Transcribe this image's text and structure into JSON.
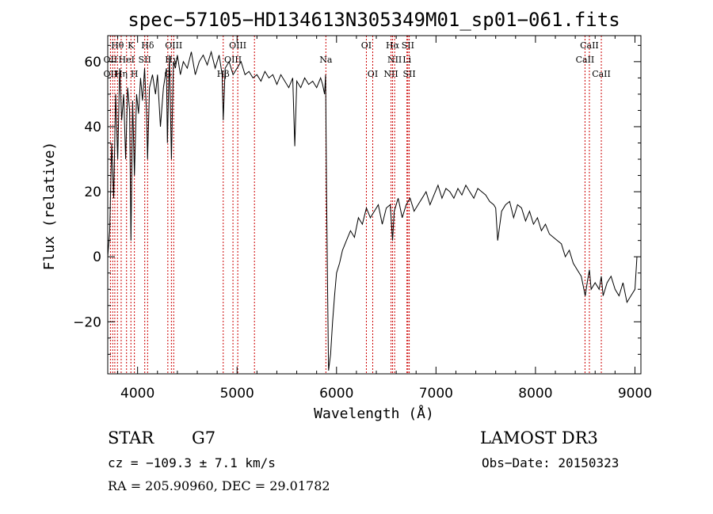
{
  "chart_data": {
    "type": "line",
    "title": "spec−57105−HD134613N305349M01_sp01−061.fits",
    "xlabel": "Wavelength (Å)",
    "ylabel": "Flux (relative)",
    "xlim": [
      3700,
      9060
    ],
    "ylim": [
      -36,
      68
    ],
    "x_ticks": [
      4000,
      5000,
      6000,
      7000,
      8000,
      9000
    ],
    "y_ticks": [
      -20,
      0,
      20,
      40,
      60
    ],
    "y_tick_labels": [
      "−20",
      "0",
      "20",
      "40",
      "60"
    ],
    "series": [
      {
        "color": "#000000",
        "x": [
          3700,
          3720,
          3740,
          3760,
          3780,
          3800,
          3820,
          3840,
          3860,
          3880,
          3900,
          3920,
          3933,
          3950,
          3968,
          3990,
          4010,
          4030,
          4050,
          4070,
          4090,
          4101,
          4120,
          4150,
          4180,
          4200,
          4230,
          4260,
          4290,
          4300,
          4320,
          4340,
          4360,
          4380,
          4400,
          4430,
          4460,
          4500,
          4540,
          4580,
          4620,
          4660,
          4700,
          4740,
          4780,
          4820,
          4850,
          4861,
          4880,
          4920,
          4960,
          5000,
          5040,
          5080,
          5120,
          5160,
          5200,
          5240,
          5280,
          5320,
          5360,
          5400,
          5440,
          5480,
          5520,
          5560,
          5580,
          5600,
          5640,
          5680,
          5720,
          5760,
          5800,
          5840,
          5860,
          5880,
          5890,
          5900,
          5910,
          5920,
          5940,
          5960,
          5980,
          6000,
          6030,
          6060,
          6100,
          6140,
          6180,
          6220,
          6260,
          6300,
          6340,
          6380,
          6420,
          6460,
          6500,
          6540,
          6563,
          6580,
          6620,
          6660,
          6700,
          6740,
          6780,
          6820,
          6860,
          6900,
          6940,
          6980,
          7020,
          7060,
          7100,
          7140,
          7180,
          7220,
          7260,
          7300,
          7340,
          7380,
          7420,
          7460,
          7500,
          7540,
          7580,
          7600,
          7620,
          7660,
          7700,
          7740,
          7780,
          7820,
          7860,
          7900,
          7940,
          7980,
          8020,
          8060,
          8100,
          8140,
          8180,
          8220,
          8260,
          8300,
          8340,
          8380,
          8420,
          8460,
          8500,
          8520,
          8542,
          8560,
          8600,
          8640,
          8662,
          8680,
          8720,
          8760,
          8800,
          8840,
          8880,
          8920,
          8960,
          9000,
          9020
        ],
        "y": [
          0,
          8,
          35,
          18,
          50,
          30,
          58,
          42,
          50,
          30,
          52,
          45,
          5,
          48,
          25,
          50,
          44,
          55,
          48,
          58,
          44,
          30,
          52,
          56,
          50,
          56,
          40,
          52,
          58,
          35,
          62,
          30,
          60,
          58,
          62,
          56,
          60,
          58,
          63,
          56,
          60,
          62,
          59,
          63,
          58,
          62,
          56,
          42,
          58,
          60,
          56,
          58,
          60,
          56,
          57,
          55,
          56,
          54,
          57,
          55,
          56,
          53,
          56,
          54,
          52,
          55,
          34,
          54,
          52,
          55,
          53,
          54,
          52,
          55,
          53,
          50,
          56,
          20,
          -10,
          -35,
          -30,
          -20,
          -12,
          -5,
          -2,
          2,
          5,
          8,
          6,
          12,
          10,
          15,
          12,
          14,
          16,
          10,
          15,
          16,
          5,
          14,
          18,
          12,
          16,
          18,
          14,
          16,
          18,
          20,
          16,
          19,
          22,
          18,
          21,
          20,
          18,
          21,
          19,
          22,
          20,
          18,
          21,
          20,
          19,
          17,
          16,
          15,
          5,
          14,
          16,
          17,
          12,
          16,
          15,
          11,
          14,
          10,
          12,
          8,
          10,
          7,
          6,
          5,
          4,
          0,
          2,
          -2,
          -4,
          -6,
          -12,
          -8,
          -4,
          -10,
          -8,
          -10,
          -6,
          -12,
          -8,
          -6,
          -10,
          -12,
          -8,
          -14,
          -12,
          -10,
          0
        ]
      }
    ],
    "spectral_lines": [
      {
        "label": "Hθ",
        "wavelength": 3798,
        "row": 0
      },
      {
        "label": "K",
        "wavelength": 3933,
        "row": 0
      },
      {
        "label": "Hδ",
        "wavelength": 4101,
        "row": 0
      },
      {
        "label": "OIII",
        "wavelength": 4363,
        "row": 0
      },
      {
        "label": "OIII",
        "wavelength": 5007,
        "row": 0
      },
      {
        "label": "Na",
        "wavelength": 5893,
        "row": 1
      },
      {
        "label": "OI",
        "wavelength": 6300,
        "row": 0
      },
      {
        "label": "Hα",
        "wavelength": 6563,
        "row": 0
      },
      {
        "label": "SII",
        "wavelength": 6717,
        "row": 0
      },
      {
        "label": "CaII",
        "wavelength": 8542,
        "row": 0
      },
      {
        "label": "OII",
        "wavelength": 3727,
        "row": 1
      },
      {
        "label": "HeI",
        "wavelength": 3889,
        "row": 1
      },
      {
        "label": "SII",
        "wavelength": 4072,
        "row": 1
      },
      {
        "label": "Hγ",
        "wavelength": 4340,
        "row": 1
      },
      {
        "label": "OIII",
        "wavelength": 4959,
        "row": 1
      },
      {
        "label": "NII",
        "wavelength": 6584,
        "row": 1
      },
      {
        "label": "Li",
        "wavelength": 6708,
        "row": 1
      },
      {
        "label": "CaII",
        "wavelength": 8498,
        "row": 1
      },
      {
        "label": "OII",
        "wavelength": 3727,
        "row": 2
      },
      {
        "label": "Hη",
        "wavelength": 3835,
        "row": 2
      },
      {
        "label": "H",
        "wavelength": 3968,
        "row": 2
      },
      {
        "label": "G",
        "wavelength": 4304,
        "row": 2
      },
      {
        "label": "Hβ",
        "wavelength": 4861,
        "row": 2
      },
      {
        "label": "OI",
        "wavelength": 6364,
        "row": 2
      },
      {
        "label": "NII",
        "wavelength": 6548,
        "row": 2
      },
      {
        "label": "SII",
        "wavelength": 6731,
        "row": 2
      },
      {
        "label": "CaII",
        "wavelength": 8662,
        "row": 2
      }
    ],
    "line_marker_wavelengths": [
      3727,
      3750,
      3771,
      3798,
      3835,
      3889,
      3933,
      3968,
      4072,
      4101,
      4304,
      4340,
      4363,
      4861,
      4959,
      5007,
      5175,
      5893,
      6300,
      6364,
      6548,
      6563,
      6584,
      6708,
      6717,
      6731,
      8498,
      8542,
      8662
    ],
    "line_marker_color": "#cc0000"
  },
  "info": {
    "object_class": "STAR",
    "subclass": "G7",
    "survey": "LAMOST DR3",
    "cz": "cz = −109.3 ± 7.1 km/s",
    "obs_date": "Obs−Date: 20150323",
    "coords": "RA = 205.90960, DEC =  29.01782"
  }
}
